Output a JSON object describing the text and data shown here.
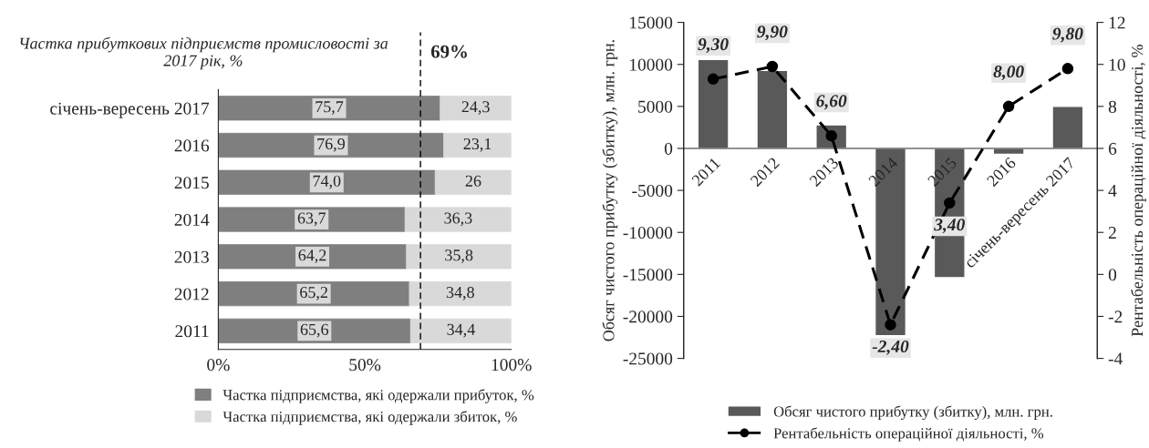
{
  "chart_data": [
    {
      "type": "bar",
      "orientation": "horizontal",
      "stacked": true,
      "categories": [
        "січень-вересень 2017",
        "2016",
        "2015",
        "2014",
        "2013",
        "2012",
        "2011"
      ],
      "series": [
        {
          "name": "Частка підприємства, які одержали прибуток, %",
          "color": "#7f7f7f",
          "values": [
            75.7,
            76.9,
            74.0,
            63.7,
            64.2,
            65.2,
            65.6
          ],
          "value_labels": [
            "75,7",
            "76,9",
            "74,0",
            "63,7",
            "64,2",
            "65,2",
            "65,6"
          ]
        },
        {
          "name": "Частка підприємства, які одержали збиток, %",
          "color": "#d9d9d9",
          "values": [
            24.3,
            23.1,
            26,
            36.3,
            35.8,
            34.8,
            34.4
          ],
          "value_labels": [
            "24,3",
            "23,1",
            "26",
            "36,3",
            "35,8",
            "34,8",
            "34,4"
          ]
        }
      ],
      "xlim": [
        0,
        100
      ],
      "xticks": [
        {
          "value": 0,
          "label": "0%"
        },
        {
          "value": 50,
          "label": "50%"
        },
        {
          "value": 100,
          "label": "100%"
        }
      ],
      "ref_lines": [
        {
          "axis": "x",
          "value": 69,
          "label": "69%",
          "line_style": "dashed",
          "color": "#000000"
        }
      ],
      "annotations": [
        "Частка прибуткових підприємств промисловості за 2017 рік, %"
      ],
      "legend": "bottom",
      "grid": false
    },
    {
      "type": "bar",
      "categories": [
        "2011",
        "2012",
        "2013",
        "2014",
        "2015",
        "2016",
        "січень-вересень 2017"
      ],
      "series": [
        {
          "name": "Обсяг чистого прибутку (збитку), млн. грн.",
          "color": "#595959",
          "values": [
            10600,
            9300,
            2800,
            -22300,
            -15400,
            -700,
            5000
          ]
        },
        {
          "name": "Рентабельність операційної діяльності, %",
          "type": "line",
          "axis": "y2",
          "color": "#000000",
          "marker": "circle",
          "line_style": "dashed",
          "values": [
            9.3,
            9.9,
            6.6,
            -2.4,
            3.4,
            8.0,
            9.8
          ],
          "value_labels": [
            "9,30",
            "9,90",
            "6,60",
            "-2,40",
            "3,40",
            "8,00",
            "9,80"
          ]
        }
      ],
      "ylabel": "Обсяг чистого прибутку (збитку), млн. грн.",
      "y2label": "Рентабельність операційної діяльності, %",
      "ylim": [
        -25000,
        15000
      ],
      "yticks": [
        -25000,
        -20000,
        -15000,
        -10000,
        -5000,
        0,
        5000,
        10000,
        15000
      ],
      "y2lim": [
        -4,
        12
      ],
      "y2ticks": [
        -4,
        -2,
        0,
        2,
        4,
        6,
        8,
        10,
        12
      ],
      "legend": "bottom",
      "grid": false
    }
  ]
}
